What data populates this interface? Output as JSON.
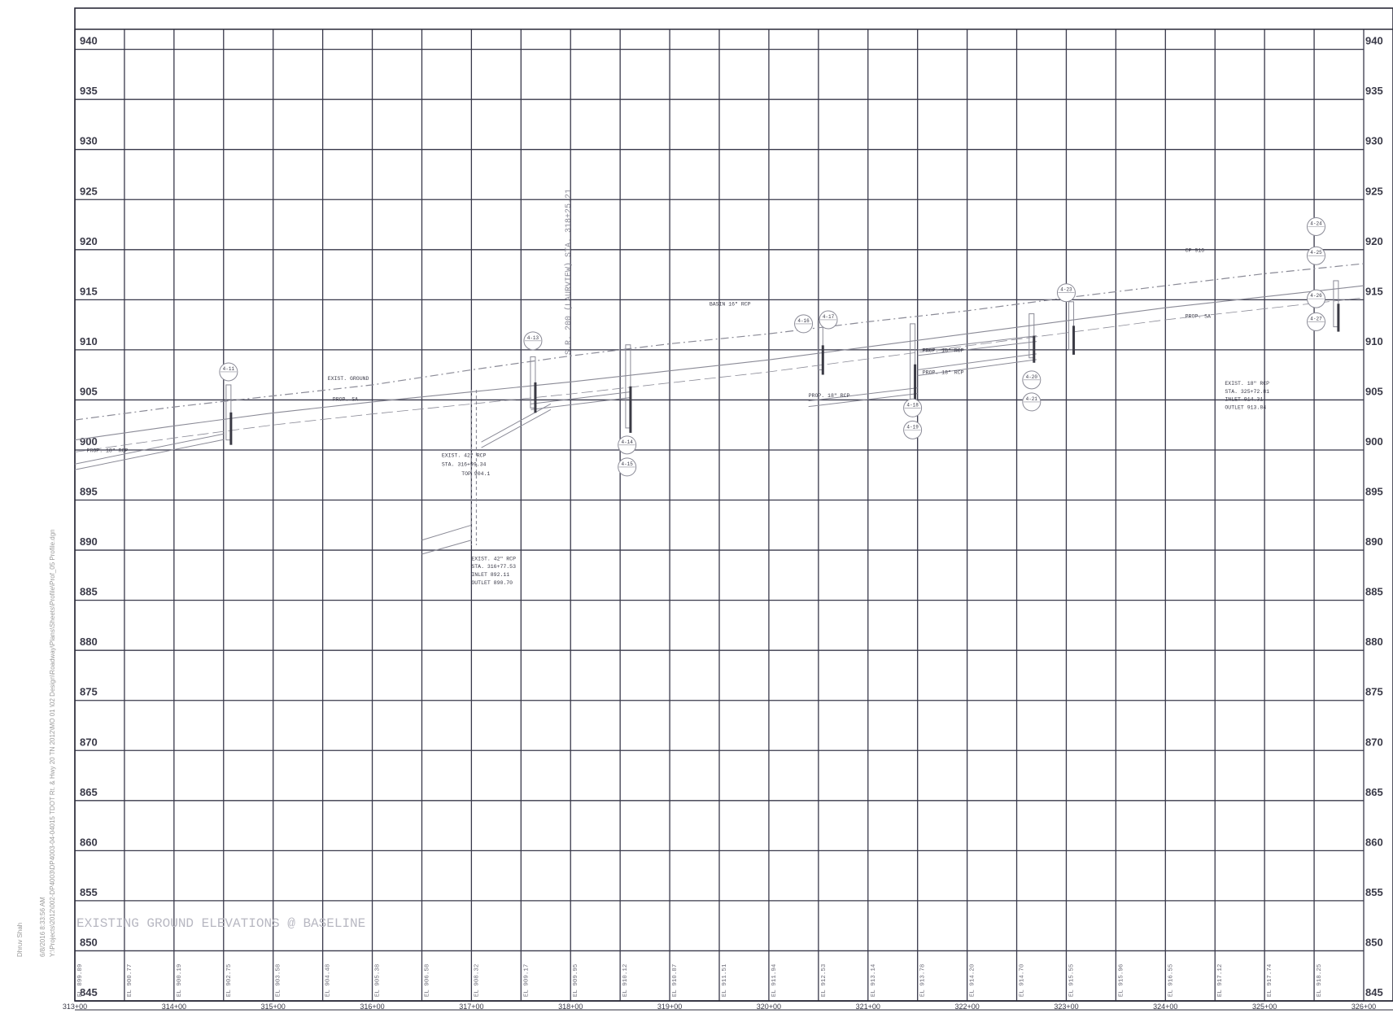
{
  "sheet": {
    "grid_label": "",
    "side_date": "6/8/2016 8:33:56 AM",
    "side_user": "Dhruv Shah",
    "side_path": "Y:\\Projects\\2012\\002-DP4003\\DP4003-04-04015 TDOT Rt. & Hwy 20 TN 2012\\MO 01 \\02 Design\\Roadway\\Plans\\Sheets\\Profile\\Prof_05 Profile.dgn"
  },
  "chart_data": {
    "type": "profile",
    "title": "",
    "elevations": [
      940,
      935,
      930,
      925,
      920,
      915,
      910,
      905,
      900,
      895,
      890,
      885,
      880,
      875,
      870,
      865,
      860,
      855,
      850,
      845
    ],
    "stations": [
      "313+00",
      "314+00",
      "315+00",
      "316+00",
      "317+00",
      "318+00",
      "319+00",
      "320+00",
      "321+00",
      "322+00",
      "323+00",
      "324+00",
      "325+00",
      "326+00"
    ],
    "station_range": [
      313,
      326
    ],
    "elevation_range": [
      845,
      942
    ],
    "ground_elev_title": "EXISTING GROUND ELEVATIONS @ BASELINE",
    "ground_elevations": [
      {
        "sta": 313.0,
        "label": "EL 899.89"
      },
      {
        "sta": 313.5,
        "label": "EL 900.77"
      },
      {
        "sta": 314.0,
        "label": "EL 900.19"
      },
      {
        "sta": 314.5,
        "label": "EL 902.75"
      },
      {
        "sta": 315.0,
        "label": "EL 903.58"
      },
      {
        "sta": 315.5,
        "label": "EL 904.48"
      },
      {
        "sta": 316.0,
        "label": "EL 905.38"
      },
      {
        "sta": 316.5,
        "label": "EL 906.58"
      },
      {
        "sta": 317.0,
        "label": "EL 908.32"
      },
      {
        "sta": 317.5,
        "label": "EL 909.17"
      },
      {
        "sta": 318.0,
        "label": "EL 909.95"
      },
      {
        "sta": 318.5,
        "label": "EL 910.12"
      },
      {
        "sta": 319.0,
        "label": "EL 910.87"
      },
      {
        "sta": 319.5,
        "label": "EL 911.51"
      },
      {
        "sta": 320.0,
        "label": "EL 911.94"
      },
      {
        "sta": 320.5,
        "label": "EL 912.53"
      },
      {
        "sta": 321.0,
        "label": "EL 913.14"
      },
      {
        "sta": 321.5,
        "label": "EL 913.78"
      },
      {
        "sta": 322.0,
        "label": "EL 914.20"
      },
      {
        "sta": 322.5,
        "label": "EL 914.70"
      },
      {
        "sta": 323.0,
        "label": "EL 915.55"
      },
      {
        "sta": 323.5,
        "label": "EL 915.96"
      },
      {
        "sta": 324.0,
        "label": "EL 916.55"
      },
      {
        "sta": 324.5,
        "label": "EL 917.12"
      },
      {
        "sta": 325.0,
        "label": "EL 917.74"
      },
      {
        "sta": 325.5,
        "label": "EL 918.25"
      }
    ],
    "existing_ground": [
      [
        313.0,
        903.0
      ],
      [
        314.0,
        904.3
      ],
      [
        315.0,
        905.4
      ],
      [
        316.0,
        906.5
      ],
      [
        317.0,
        908.0
      ],
      [
        318.0,
        909.4
      ],
      [
        319.0,
        910.6
      ],
      [
        320.0,
        911.6
      ],
      [
        321.0,
        912.8
      ],
      [
        322.0,
        913.9
      ],
      [
        323.0,
        915.2
      ],
      [
        324.0,
        916.4
      ],
      [
        325.0,
        917.6
      ],
      [
        326.0,
        918.6
      ]
    ],
    "baseline": [
      [
        313.0,
        901.0
      ],
      [
        314.0,
        902.4
      ],
      [
        315.0,
        903.7
      ],
      [
        316.0,
        904.8
      ],
      [
        317.0,
        905.8
      ],
      [
        318.0,
        906.8
      ],
      [
        319.0,
        907.9
      ],
      [
        320.0,
        909.0
      ],
      [
        321.0,
        910.3
      ],
      [
        322.0,
        911.6
      ],
      [
        323.0,
        912.9
      ],
      [
        324.0,
        914.2
      ],
      [
        325.0,
        915.3
      ],
      [
        326.0,
        916.4
      ]
    ],
    "pipes": [
      {
        "from": [
          313.0,
          898.6
        ],
        "to": [
          314.5,
          901.6
        ],
        "label": "PROP. 18\" RCP"
      },
      {
        "from": [
          317.1,
          900.8
        ],
        "to": [
          317.8,
          904.6
        ],
        "label": "PROP. 18\" RCP"
      },
      {
        "from": [
          317.6,
          904.6
        ],
        "to": [
          318.6,
          905.8
        ],
        "label": "PROP. 18\" RCP"
      },
      {
        "from": [
          320.4,
          904.9
        ],
        "to": [
          321.5,
          906.2
        ],
        "label": "PROP. 18\" RCP"
      },
      {
        "from": [
          321.5,
          908.0
        ],
        "to": [
          322.7,
          909.6
        ],
        "label": "PROP. 18\" RCP"
      },
      {
        "from": [
          321.5,
          910.0
        ],
        "to": [
          322.7,
          911.4
        ],
        "label": "PROP. 18\" RCP"
      }
    ],
    "structures": [
      {
        "sta": 314.55,
        "top": 906.5,
        "bottom": 901.0,
        "label": "4-11"
      },
      {
        "sta": 317.62,
        "top": 909.3,
        "bottom": 904.2,
        "label": "4-13"
      },
      {
        "sta": 318.58,
        "top": 910.5,
        "bottom": 902.2,
        "label": "4-15"
      },
      {
        "sta": 320.52,
        "top": 912.9,
        "bottom": 908.0,
        "label": "4-17"
      },
      {
        "sta": 321.45,
        "top": 912.6,
        "bottom": 904.5,
        "label": "4-19"
      },
      {
        "sta": 322.65,
        "top": 913.6,
        "bottom": 909.2,
        "label": "4-21"
      },
      {
        "sta": 323.05,
        "top": 914.8,
        "bottom": 910.0,
        "label": "4-23"
      },
      {
        "sta": 325.72,
        "top": 916.9,
        "bottom": 912.3,
        "label": "4-25"
      }
    ],
    "markers": [
      {
        "sta": 314.55,
        "elev": 907.8,
        "label": "4-11"
      },
      {
        "sta": 317.62,
        "elev": 910.9,
        "label": "4-13"
      },
      {
        "sta": 318.57,
        "elev": 900.5,
        "label": "4-14"
      },
      {
        "sta": 318.57,
        "elev": 898.3,
        "label": "4-15"
      },
      {
        "sta": 320.35,
        "elev": 912.6,
        "label": "4-16"
      },
      {
        "sta": 320.6,
        "elev": 913.0,
        "label": "4-17"
      },
      {
        "sta": 321.45,
        "elev": 904.2,
        "label": "4-18"
      },
      {
        "sta": 321.45,
        "elev": 902.0,
        "label": "4-19"
      },
      {
        "sta": 322.65,
        "elev": 907.0,
        "label": "4-20"
      },
      {
        "sta": 322.65,
        "elev": 904.8,
        "label": "4-21"
      },
      {
        "sta": 323.0,
        "elev": 915.7,
        "label": "4-23"
      },
      {
        "sta": 325.52,
        "elev": 922.3,
        "label": "4-24"
      },
      {
        "sta": 325.52,
        "elev": 919.4,
        "label": "4-25"
      },
      {
        "sta": 325.52,
        "elev": 915.1,
        "label": "4-26"
      },
      {
        "sta": 325.52,
        "elev": 912.8,
        "label": "4-27"
      }
    ],
    "vertical_note": "S.R. 200 (LAURVIEW) STA. 318+25.21",
    "annotations": [
      {
        "sta": 313.12,
        "elev": 899.8,
        "text": "PROP. 18\" RCP"
      },
      {
        "sta": 315.55,
        "elev": 907.0,
        "text": "EXIST. GROUND"
      },
      {
        "sta": 315.6,
        "elev": 904.9,
        "text": "PROP. SA"
      },
      {
        "sta": 316.7,
        "elev": 899.3,
        "text": "EXIST. 42\" RCP"
      },
      {
        "sta": 316.7,
        "elev": 898.4,
        "text": "STA. 316+99.34"
      },
      {
        "sta": 316.9,
        "elev": 897.5,
        "text": "TOP 904.1"
      },
      {
        "sta": 317.0,
        "elev": 889.0,
        "text": "EXIST. 42\" RCP"
      },
      {
        "sta": 317.0,
        "elev": 888.2,
        "text": "STA. 316+77.53"
      },
      {
        "sta": 317.0,
        "elev": 887.4,
        "text": "INLET 892.11"
      },
      {
        "sta": 317.0,
        "elev": 886.6,
        "text": "OUTLET 890.70"
      },
      {
        "sta": 319.4,
        "elev": 914.4,
        "text": "BASIN 16\" RCP"
      },
      {
        "sta": 320.4,
        "elev": 905.3,
        "text": "PROP. 18\" RCP"
      },
      {
        "sta": 321.55,
        "elev": 909.8,
        "text": "PROP. 18\" RCP"
      },
      {
        "sta": 321.55,
        "elev": 907.6,
        "text": "PROP. 18\" RCP"
      },
      {
        "sta": 324.2,
        "elev": 919.8,
        "text": "CP 916"
      },
      {
        "sta": 324.2,
        "elev": 913.2,
        "text": "PROP. SA"
      },
      {
        "sta": 324.6,
        "elev": 906.5,
        "text": "EXIST. 18\" RCP"
      },
      {
        "sta": 324.6,
        "elev": 905.7,
        "text": "STA. 325+72.81"
      },
      {
        "sta": 324.6,
        "elev": 904.9,
        "text": "INLET 914.31"
      },
      {
        "sta": 324.6,
        "elev": 904.1,
        "text": "OUTLET 913.84"
      }
    ],
    "grid": true,
    "colors": {
      "grid": "#38384a",
      "frame": "#2a2a38",
      "drawing": "#8a8a96",
      "text": "#3a3a48",
      "faint": "#b8b8c2"
    }
  }
}
